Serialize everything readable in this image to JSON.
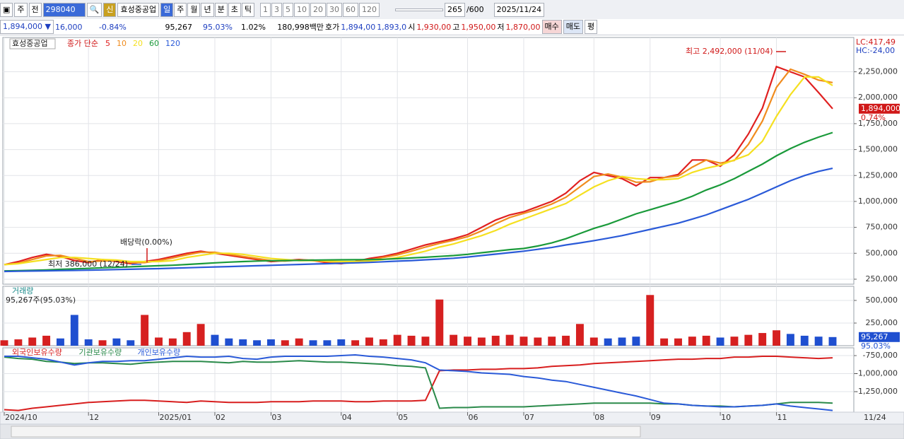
{
  "toolbar": {
    "items": [
      "주",
      "전"
    ],
    "code": "298040",
    "new_badge": "신",
    "name": "효성중공업",
    "periods": [
      "일",
      "주",
      "월",
      "년",
      "분",
      "초",
      "틱"
    ],
    "intervals": [
      "1",
      "3",
      "5",
      "10",
      "20",
      "30",
      "60",
      "120"
    ],
    "count": "265",
    "max_count": "/600",
    "date": "2025/11/24"
  },
  "quote": {
    "price": "1,894,000 ▼",
    "change": "16,000",
    "change_pct": "-0.84%",
    "volume": "95,267",
    "volume_pct": "95.03%",
    "turnover_pct": "1.02%",
    "amount": "180,998백만",
    "bid_label": "호가",
    "bid": "1,894,00",
    "ask": "1,893,0",
    "open_label": "시",
    "open": "1,930,00",
    "high_label": "고",
    "high": "1,950,00",
    "low_label": "저",
    "low": "1,870,00",
    "buy": "매수",
    "sell": "매도",
    "avg": "평"
  },
  "axis_date": "11/24",
  "chart_data": [
    {
      "type": "line",
      "legend_name": "효성중공업",
      "legend_kind": "종가 단순",
      "series": [
        {
          "name": "5",
          "color": "#e02020",
          "values": [
            390000,
            420000,
            460000,
            490000,
            470000,
            430000,
            410000,
            440000,
            420000,
            400000,
            420000,
            440000,
            470000,
            500000,
            520000,
            500000,
            480000,
            460000,
            440000,
            420000,
            430000,
            440000,
            430000,
            410000,
            400000,
            420000,
            450000,
            470000,
            500000,
            540000,
            580000,
            610000,
            640000,
            680000,
            750000,
            820000,
            870000,
            900000,
            950000,
            1000000,
            1080000,
            1200000,
            1280000,
            1250000,
            1220000,
            1150000,
            1230000,
            1230000,
            1260000,
            1400000,
            1400000,
            1340000,
            1450000,
            1650000,
            1900000,
            2300000,
            2250000,
            2200000,
            2050000,
            1894000
          ]
        },
        {
          "name": "10",
          "color": "#f08c1e",
          "values": [
            390000,
            405000,
            440000,
            475000,
            480000,
            450000,
            420000,
            425000,
            430000,
            410000,
            410000,
            430000,
            455000,
            485000,
            510000,
            510000,
            490000,
            470000,
            450000,
            430000,
            425000,
            435000,
            435000,
            420000,
            405000,
            410000,
            435000,
            460000,
            485000,
            520000,
            560000,
            595000,
            625000,
            660000,
            715000,
            785000,
            845000,
            885000,
            925000,
            975000,
            1040000,
            1140000,
            1240000,
            1265000,
            1235000,
            1185000,
            1190000,
            1230000,
            1245000,
            1330000,
            1400000,
            1370000,
            1395000,
            1550000,
            1775000,
            2100000,
            2275000,
            2225000,
            2170000,
            2146000
          ]
        },
        {
          "name": "20",
          "color": "#f5e020",
          "values": [
            390000,
            400000,
            420000,
            440000,
            460000,
            460000,
            450000,
            440000,
            435000,
            420000,
            420000,
            420000,
            430000,
            460000,
            480000,
            500000,
            500000,
            490000,
            470000,
            450000,
            440000,
            430000,
            430000,
            425000,
            420000,
            420000,
            425000,
            440000,
            460000,
            490000,
            520000,
            560000,
            590000,
            630000,
            670000,
            720000,
            780000,
            830000,
            880000,
            930000,
            980000,
            1060000,
            1140000,
            1200000,
            1240000,
            1220000,
            1210000,
            1210000,
            1220000,
            1280000,
            1320000,
            1350000,
            1400000,
            1450000,
            1580000,
            1820000,
            2030000,
            2200000,
            2200000,
            2118000
          ]
        },
        {
          "name": "60",
          "color": "#1a9a3a",
          "values": [
            330000,
            333000,
            336000,
            340000,
            345000,
            350000,
            355000,
            360000,
            365000,
            370000,
            375000,
            380000,
            385000,
            392000,
            400000,
            408000,
            415000,
            420000,
            425000,
            428000,
            430000,
            432000,
            434000,
            436000,
            437000,
            438000,
            440000,
            442000,
            448000,
            455000,
            462000,
            470000,
            478000,
            490000,
            505000,
            520000,
            535000,
            546000,
            570000,
            600000,
            640000,
            690000,
            740000,
            780000,
            830000,
            880000,
            920000,
            960000,
            1000000,
            1050000,
            1110000,
            1160000,
            1220000,
            1290000,
            1360000,
            1440000,
            1510000,
            1570000,
            1620000,
            1664000
          ]
        },
        {
          "name": "120",
          "color": "#2a5ad8",
          "values": [
            325000,
            327000,
            329000,
            331000,
            333000,
            335000,
            337000,
            340000,
            343000,
            346000,
            349000,
            352000,
            356000,
            360000,
            364000,
            368000,
            372000,
            376000,
            380000,
            384000,
            388000,
            392000,
            396000,
            400000,
            404000,
            408000,
            412000,
            418000,
            424000,
            430000,
            437000,
            444000,
            452000,
            464000,
            478000,
            492000,
            506000,
            520000,
            538000,
            556000,
            580000,
            600000,
            622000,
            646000,
            670000,
            700000,
            730000,
            760000,
            790000,
            830000,
            870000,
            920000,
            970000,
            1020000,
            1080000,
            1140000,
            1200000,
            1250000,
            1290000,
            1319000
          ]
        }
      ],
      "ylim": [
        202000,
        2581000
      ],
      "yticks": [
        {
          "value": 250000,
          "label": "250,000"
        },
        {
          "value": 500000,
          "label": "500,000"
        },
        {
          "value": 750000,
          "label": "750,000"
        },
        {
          "value": 1000000,
          "label": "1,000,000"
        },
        {
          "value": 1250000,
          "label": "1,250,000"
        },
        {
          "value": 1500000,
          "label": "1,500,000"
        },
        {
          "value": 1750000,
          "label": "1,750,000"
        },
        {
          "value": 2000000,
          "label": "2,000,000"
        },
        {
          "value": 2250000,
          "label": "2,250,000"
        }
      ],
      "annotations": [
        "최고 2,492,000 (11/04)",
        "배당락(0.00%)",
        "최저 386,000 (12/24)"
      ],
      "lc": "LC:417,49",
      "hc": "HC:-24,00",
      "price_tag": "1,894,000",
      "price_tag_pct": "0.74%"
    },
    {
      "type": "bar",
      "title": "거래량",
      "subtitle": "95,267주(95.03%)",
      "up_color": "#d62020",
      "down_color": "#1f4fd0",
      "values": [
        60000,
        70000,
        90000,
        110000,
        80000,
        340000,
        70000,
        60000,
        80000,
        60000,
        340000,
        90000,
        80000,
        150000,
        240000,
        120000,
        80000,
        70000,
        60000,
        70000,
        60000,
        80000,
        60000,
        60000,
        70000,
        60000,
        90000,
        70000,
        120000,
        110000,
        100000,
        510000,
        120000,
        100000,
        90000,
        110000,
        120000,
        100000,
        90000,
        100000,
        110000,
        240000,
        90000,
        80000,
        90000,
        100000,
        560000,
        80000,
        80000,
        100000,
        110000,
        90000,
        100000,
        120000,
        140000,
        170000,
        130000,
        110000,
        100000,
        95267
      ],
      "ylim": [
        0,
        656000
      ],
      "yticks": [
        {
          "value": 250000,
          "label": "250,000"
        },
        {
          "value": 500000,
          "label": "500,000"
        }
      ],
      "volume_tag": "95,267",
      "volume_tag_pct": "95.03%"
    },
    {
      "type": "line",
      "series": [
        {
          "name": "외국인보유수량",
          "color": "#d81e1e",
          "values": [
            -1500000,
            -1510000,
            -1480000,
            -1460000,
            -1440000,
            -1420000,
            -1400000,
            -1390000,
            -1380000,
            -1370000,
            -1370000,
            -1380000,
            -1390000,
            -1400000,
            -1380000,
            -1390000,
            -1400000,
            -1400000,
            -1400000,
            -1390000,
            -1390000,
            -1390000,
            -1380000,
            -1380000,
            -1380000,
            -1390000,
            -1390000,
            -1380000,
            -1380000,
            -1380000,
            -1370000,
            -960000,
            -950000,
            -950000,
            -940000,
            -940000,
            -930000,
            -930000,
            -920000,
            -900000,
            -890000,
            -880000,
            -860000,
            -850000,
            -840000,
            -830000,
            -820000,
            -810000,
            -800000,
            -800000,
            -790000,
            -790000,
            -770000,
            -770000,
            -760000,
            -760000,
            -770000,
            -780000,
            -790000,
            -780000
          ]
        },
        {
          "name": "기관보유수량",
          "color": "#2a8a4a",
          "values": [
            -770000,
            -790000,
            -800000,
            -830000,
            -840000,
            -860000,
            -850000,
            -850000,
            -860000,
            -870000,
            -850000,
            -840000,
            -830000,
            -830000,
            -830000,
            -840000,
            -850000,
            -830000,
            -840000,
            -840000,
            -830000,
            -820000,
            -830000,
            -840000,
            -840000,
            -850000,
            -860000,
            -870000,
            -890000,
            -900000,
            -920000,
            -1480000,
            -1470000,
            -1470000,
            -1460000,
            -1460000,
            -1460000,
            -1460000,
            -1450000,
            -1440000,
            -1430000,
            -1420000,
            -1410000,
            -1410000,
            -1410000,
            -1410000,
            -1410000,
            -1420000,
            -1420000,
            -1440000,
            -1450000,
            -1450000,
            -1460000,
            -1450000,
            -1440000,
            -1420000,
            -1400000,
            -1400000,
            -1400000,
            -1410000
          ]
        },
        {
          "name": "개인보유수량",
          "color": "#2a5ad8",
          "values": [
            -760000,
            -760000,
            -780000,
            -800000,
            -840000,
            -880000,
            -850000,
            -830000,
            -830000,
            -820000,
            -820000,
            -800000,
            -780000,
            -760000,
            -770000,
            -770000,
            -760000,
            -790000,
            -800000,
            -770000,
            -760000,
            -760000,
            -760000,
            -760000,
            -750000,
            -740000,
            -760000,
            -770000,
            -790000,
            -810000,
            -850000,
            -950000,
            -960000,
            -970000,
            -990000,
            -1000000,
            -1010000,
            -1040000,
            -1060000,
            -1090000,
            -1110000,
            -1150000,
            -1190000,
            -1230000,
            -1270000,
            -1310000,
            -1360000,
            -1410000,
            -1420000,
            -1440000,
            -1450000,
            -1460000,
            -1460000,
            -1450000,
            -1440000,
            -1420000,
            -1450000,
            -1470000,
            -1490000,
            -1510000
          ]
        }
      ],
      "ylim": [
        -1534000,
        -642000
      ],
      "yticks": [
        {
          "value": -750000,
          "label": "-750,000"
        },
        {
          "value": -1000000,
          "label": "-1,000,000"
        },
        {
          "value": -1250000,
          "label": "-1,250,000"
        }
      ],
      "categories": [
        "2024/10",
        null,
        null,
        null,
        null,
        null,
        "12",
        null,
        null,
        null,
        null,
        "2025/01",
        null,
        null,
        null,
        "02",
        null,
        null,
        null,
        "03",
        null,
        null,
        null,
        null,
        "04",
        null,
        null,
        null,
        "05",
        null,
        null,
        null,
        null,
        "06",
        null,
        null,
        null,
        "07",
        null,
        null,
        null,
        null,
        "08",
        null,
        null,
        null,
        "09",
        null,
        null,
        null,
        null,
        "10",
        null,
        null,
        null,
        "11",
        null,
        null,
        null,
        null
      ]
    }
  ]
}
